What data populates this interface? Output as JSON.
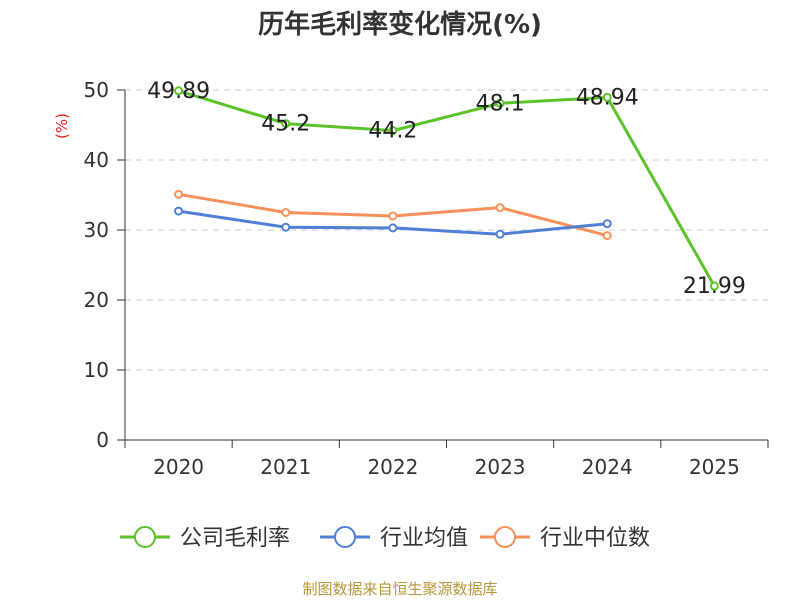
{
  "chart_data": {
    "type": "line",
    "title": "历年毛利率变化情况(%)",
    "ylabel": "(%)",
    "xlabel": "",
    "categories": [
      "2020",
      "2021",
      "2022",
      "2023",
      "2024",
      "2025"
    ],
    "ylim": [
      0,
      50
    ],
    "yticks": [
      0,
      10,
      20,
      30,
      40,
      50
    ],
    "grid": true,
    "legend_position": "bottom",
    "series": [
      {
        "name": "公司毛利率",
        "color": "#5cc22a",
        "values": [
          49.89,
          45.2,
          44.2,
          48.1,
          48.94,
          21.99
        ],
        "labels": [
          "49.89",
          "45.2",
          "44.2",
          "48.1",
          "48.94",
          "21.99"
        ]
      },
      {
        "name": "行业均值",
        "color": "#4f7fd6",
        "values": [
          32.7,
          30.4,
          30.3,
          29.4,
          30.9,
          null
        ]
      },
      {
        "name": "行业中位数",
        "color": "#f7905b",
        "values": [
          35.1,
          32.5,
          32.0,
          33.2,
          29.2,
          null
        ]
      }
    ]
  },
  "source_note": "制图数据来自恒生聚源数据库"
}
